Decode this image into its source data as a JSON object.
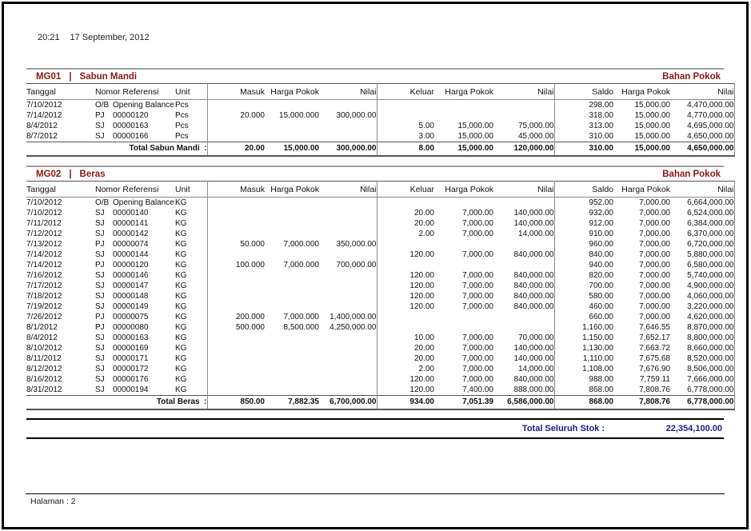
{
  "page": {
    "time": "20:21",
    "date": "17 September, 2012"
  },
  "columns": [
    "Tanggal",
    "Nomor Referensi",
    "Unit",
    "Masuk",
    "Harga Pokok",
    "Nilai",
    "Keluar",
    "Harga Pokok",
    "Nilai",
    "Saldo",
    "Harga Pokok",
    "Nilai"
  ],
  "section_separator": "|",
  "colors": {
    "section_accent": "#8c1717",
    "grand_total_accent": "#1a1a8c"
  },
  "sections": [
    {
      "code": "MG01",
      "name": "Sabun Mandi",
      "category": "Bahan Pokok",
      "rows": [
        [
          "7/10/2012",
          "O/B",
          "Opening Balance:",
          "Pcs",
          "",
          "",
          "",
          "",
          "",
          "",
          "298.00",
          "15,000.00",
          "4,470,000.00"
        ],
        [
          "7/14/2012",
          "PJ",
          "00000120",
          "Pcs",
          "20.000",
          "15,000.000",
          "300,000.00",
          "",
          "",
          "",
          "318.00",
          "15,000.00",
          "4,770,000.00"
        ],
        [
          "8/4/2012",
          "SJ",
          "00000163",
          "Pcs",
          "",
          "",
          "",
          "5.00",
          "15,000.00",
          "75,000.00",
          "313.00",
          "15,000.00",
          "4,695,000.00"
        ],
        [
          "8/7/2012",
          "SJ",
          "00000166",
          "Pcs",
          "",
          "",
          "",
          "3.00",
          "15,000.00",
          "45,000.00",
          "310.00",
          "15,000.00",
          "4,650,000.00"
        ]
      ],
      "total_label": "Total Sabun Mandi  :",
      "totals": [
        "20.00",
        "15,000.00",
        "300,000.00",
        "8.00",
        "15,000.00",
        "120,000.00",
        "310.00",
        "15,000.00",
        "4,650,000.00"
      ]
    },
    {
      "code": "MG02",
      "name": "Beras",
      "category": "Bahan Pokok",
      "rows": [
        [
          "7/10/2012",
          "O/B",
          "Opening Balance:",
          "KG",
          "",
          "",
          "",
          "",
          "",
          "",
          "952.00",
          "7,000.00",
          "6,664,000.00"
        ],
        [
          "7/10/2012",
          "SJ",
          "00000140",
          "KG",
          "",
          "",
          "",
          "20.00",
          "7,000.00",
          "140,000.00",
          "932.00",
          "7,000.00",
          "6,524,000.00"
        ],
        [
          "7/11/2012",
          "SJ",
          "00000141",
          "KG",
          "",
          "",
          "",
          "20.00",
          "7,000.00",
          "140,000.00",
          "912.00",
          "7,000.00",
          "6,384,000.00"
        ],
        [
          "7/12/2012",
          "SJ",
          "00000142",
          "KG",
          "",
          "",
          "",
          "2.00",
          "7,000.00",
          "14,000.00",
          "910.00",
          "7,000.00",
          "6,370,000.00"
        ],
        [
          "7/13/2012",
          "PJ",
          "00000074",
          "KG",
          "50.000",
          "7,000.000",
          "350,000.00",
          "",
          "",
          "",
          "960.00",
          "7,000.00",
          "6,720,000.00"
        ],
        [
          "7/14/2012",
          "SJ",
          "00000144",
          "KG",
          "",
          "",
          "",
          "120.00",
          "7,000.00",
          "840,000.00",
          "840.00",
          "7,000.00",
          "5,880,000.00"
        ],
        [
          "7/14/2012",
          "PJ",
          "00000120",
          "KG",
          "100.000",
          "7,000.000",
          "700,000.00",
          "",
          "",
          "",
          "940.00",
          "7,000.00",
          "6,580,000.00"
        ],
        [
          "7/16/2012",
          "SJ",
          "00000146",
          "KG",
          "",
          "",
          "",
          "120.00",
          "7,000.00",
          "840,000.00",
          "820.00",
          "7,000.00",
          "5,740,000.00"
        ],
        [
          "7/17/2012",
          "SJ",
          "00000147",
          "KG",
          "",
          "",
          "",
          "120.00",
          "7,000.00",
          "840,000.00",
          "700.00",
          "7,000.00",
          "4,900,000.00"
        ],
        [
          "7/18/2012",
          "SJ",
          "00000148",
          "KG",
          "",
          "",
          "",
          "120.00",
          "7,000.00",
          "840,000.00",
          "580.00",
          "7,000.00",
          "4,060,000.00"
        ],
        [
          "7/19/2012",
          "SJ",
          "00000149",
          "KG",
          "",
          "",
          "",
          "120.00",
          "7,000.00",
          "840,000.00",
          "460.00",
          "7,000.00",
          "3,220,000.00"
        ],
        [
          "7/26/2012",
          "PJ",
          "00000075",
          "KG",
          "200.000",
          "7,000.000",
          "1,400,000.00",
          "",
          "",
          "",
          "660.00",
          "7,000.00",
          "4,620,000.00"
        ],
        [
          "8/1/2012",
          "PJ",
          "00000080",
          "KG",
          "500.000",
          "8,500.000",
          "4,250,000.00",
          "",
          "",
          "",
          "1,160.00",
          "7,646.55",
          "8,870,000.00"
        ],
        [
          "8/4/2012",
          "SJ",
          "00000163",
          "KG",
          "",
          "",
          "",
          "10.00",
          "7,000.00",
          "70,000.00",
          "1,150.00",
          "7,652.17",
          "8,800,000.00"
        ],
        [
          "8/10/2012",
          "SJ",
          "00000169",
          "KG",
          "",
          "",
          "",
          "20.00",
          "7,000.00",
          "140,000.00",
          "1,130.00",
          "7,663.72",
          "8,660,000.00"
        ],
        [
          "8/11/2012",
          "SJ",
          "00000171",
          "KG",
          "",
          "",
          "",
          "20.00",
          "7,000.00",
          "140,000.00",
          "1,110.00",
          "7,675.68",
          "8,520,000.00"
        ],
        [
          "8/12/2012",
          "SJ",
          "00000172",
          "KG",
          "",
          "",
          "",
          "2.00",
          "7,000.00",
          "14,000.00",
          "1,108.00",
          "7,676.90",
          "8,506,000.00"
        ],
        [
          "8/16/2012",
          "SJ",
          "00000176",
          "KG",
          "",
          "",
          "",
          "120.00",
          "7,000.00",
          "840,000.00",
          "988.00",
          "7,759.11",
          "7,666,000.00"
        ],
        [
          "8/31/2012",
          "SJ",
          "00000194",
          "KG",
          "",
          "",
          "",
          "120.00",
          "7,400.00",
          "888,000.00",
          "868.00",
          "7,808.76",
          "6,778,000.00"
        ]
      ],
      "total_label": "Total Beras  :",
      "totals": [
        "850.00",
        "7,882.35",
        "6,700,000.00",
        "934.00",
        "7,051.39",
        "6,586,000.00",
        "868.00",
        "7,808.76",
        "6,778,000.00"
      ]
    }
  ],
  "grand_total": {
    "label": "Total Seluruh Stok :",
    "value": "22,354,100.00"
  },
  "footer": {
    "page_label": "Halaman : 2"
  }
}
